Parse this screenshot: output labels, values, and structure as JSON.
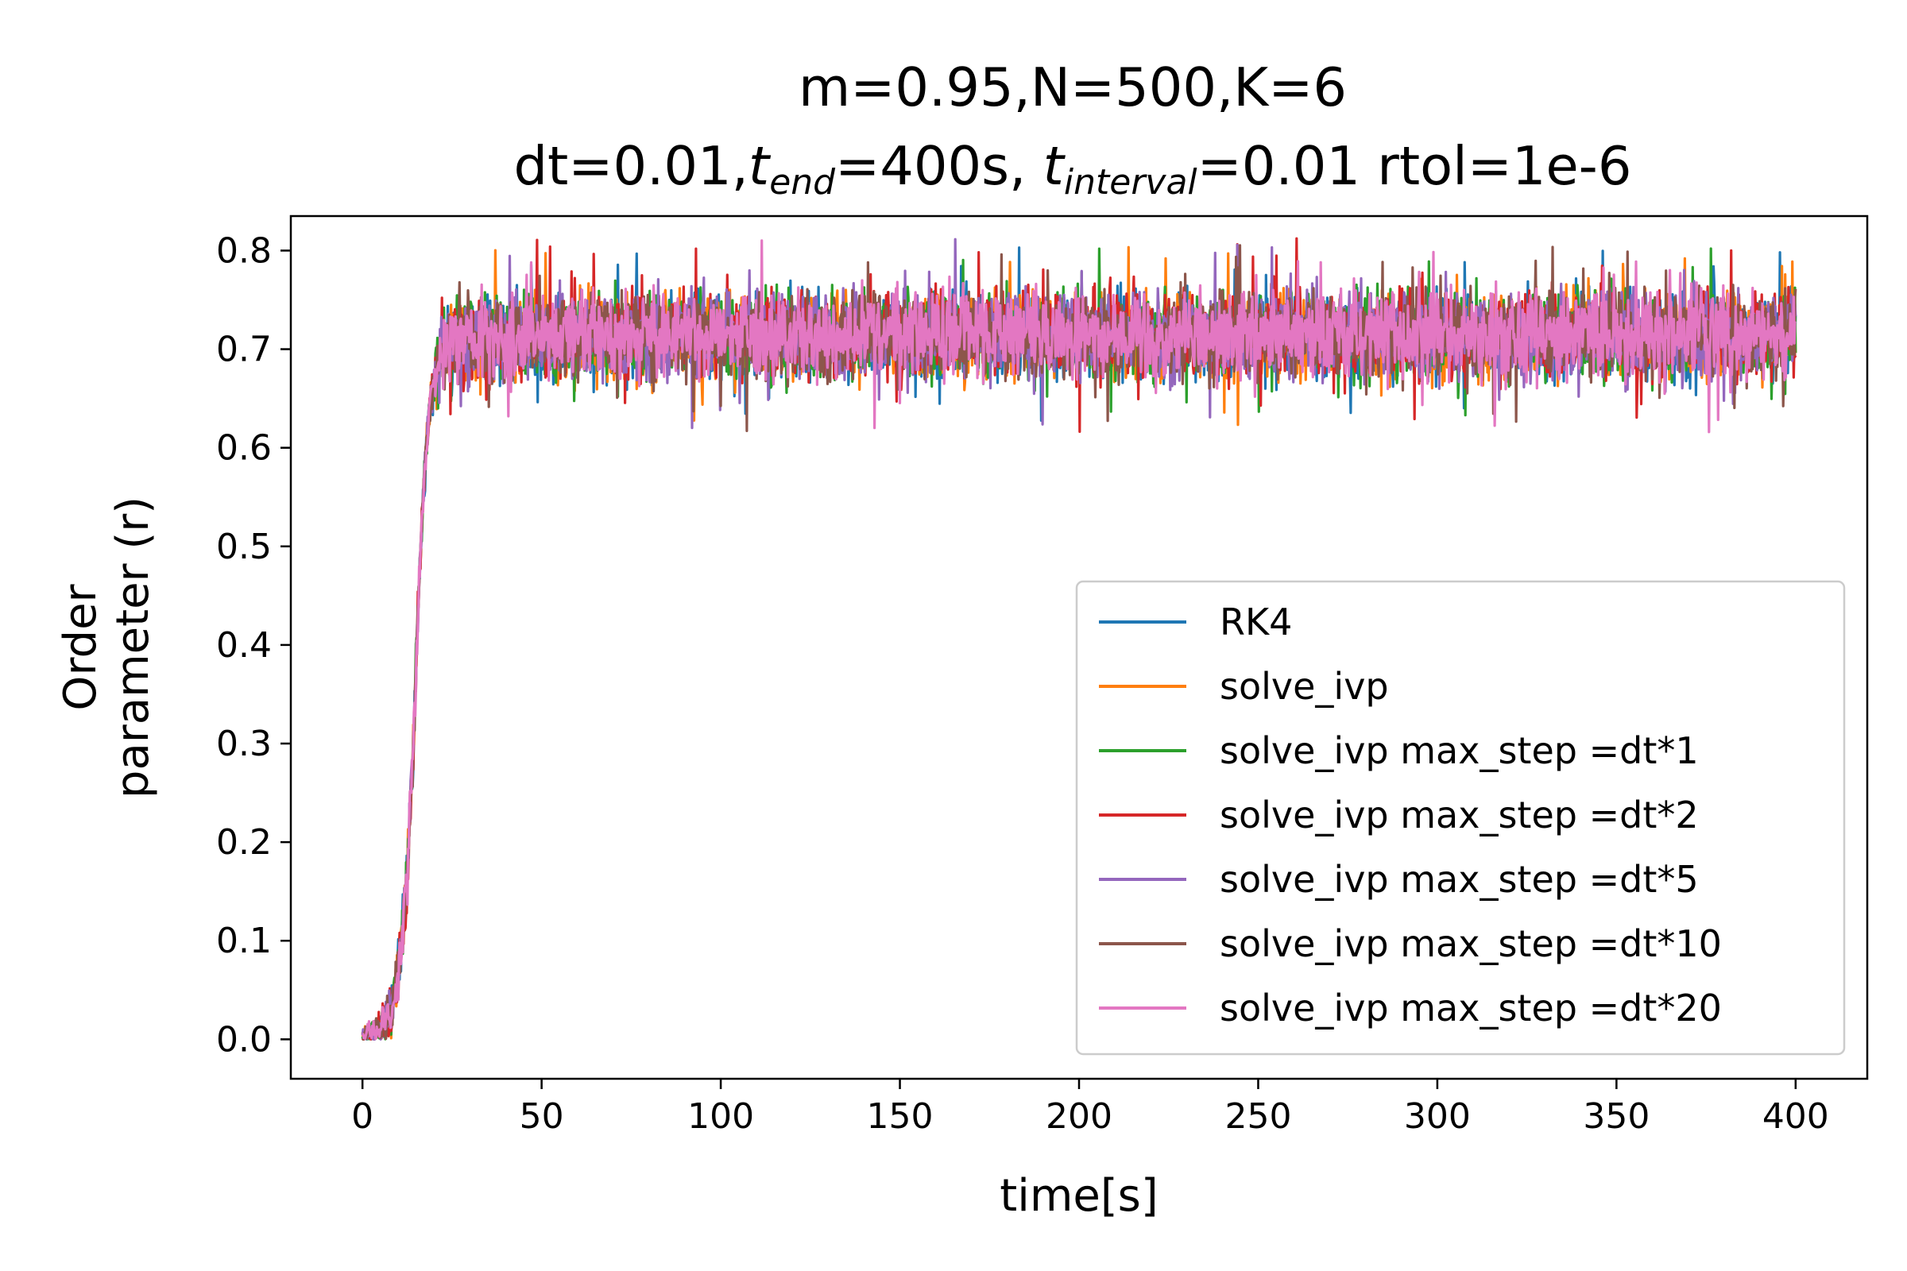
{
  "chart_data": {
    "type": "line",
    "title": {
      "line1": "m=0.95,N=500,K=6",
      "line2_parts": [
        "dt=0.01,",
        "t",
        "end",
        "=400s, ",
        "t",
        "interval",
        "=0.01 rtol=1e-6"
      ]
    },
    "xlabel": "time[s]",
    "ylabel": [
      "Order",
      "parameter (r)"
    ],
    "xlim": [
      -20,
      420
    ],
    "ylim": [
      -0.04,
      0.835
    ],
    "xticks": [
      0,
      50,
      100,
      150,
      200,
      250,
      300,
      350,
      400
    ],
    "xtick_labels": [
      "0",
      "50",
      "100",
      "150",
      "200",
      "250",
      "300",
      "350",
      "400"
    ],
    "yticks": [
      0.0,
      0.1,
      0.2,
      0.3,
      0.4,
      0.5,
      0.6,
      0.7,
      0.8
    ],
    "ytick_labels": [
      "0.0",
      "0.1",
      "0.2",
      "0.3",
      "0.4",
      "0.5",
      "0.6",
      "0.7",
      "0.8"
    ],
    "grid": false,
    "legend_position": "lower-right",
    "t_end": 400,
    "envelope": {
      "t": [
        0,
        5,
        8,
        10,
        12,
        14,
        15,
        16,
        17,
        18,
        19,
        20,
        21,
        22,
        24,
        30,
        50,
        100,
        200,
        300,
        400
      ],
      "r": [
        0.0,
        0.01,
        0.03,
        0.07,
        0.14,
        0.28,
        0.38,
        0.48,
        0.55,
        0.61,
        0.65,
        0.67,
        0.685,
        0.695,
        0.705,
        0.71,
        0.712,
        0.713,
        0.713,
        0.714,
        0.714
      ],
      "noise": [
        0.005,
        0.008,
        0.012,
        0.014,
        0.016,
        0.014,
        0.012,
        0.01,
        0.008,
        0.008,
        0.009,
        0.012,
        0.015,
        0.018,
        0.02,
        0.02,
        0.02,
        0.02,
        0.02,
        0.02,
        0.02
      ]
    },
    "series": [
      {
        "name": "RK4",
        "color": "#1f77b4"
      },
      {
        "name": "solve_ivp",
        "color": "#ff7f0e"
      },
      {
        "name": "solve_ivp max_step =dt*1",
        "color": "#2ca02c"
      },
      {
        "name": "solve_ivp max_step =dt*2",
        "color": "#d62728"
      },
      {
        "name": "solve_ivp max_step =dt*5",
        "color": "#9467bd"
      },
      {
        "name": "solve_ivp max_step =dt*10",
        "color": "#8c564b"
      },
      {
        "name": "solve_ivp max_step =dt*20",
        "color": "#e377c2"
      }
    ]
  }
}
